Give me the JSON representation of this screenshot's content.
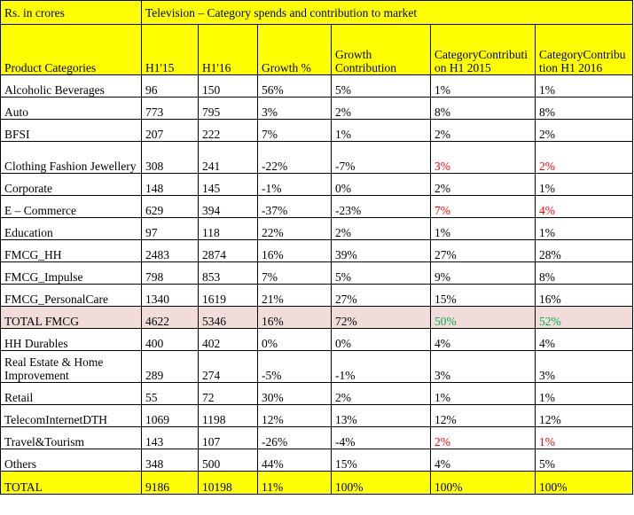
{
  "header": {
    "unit_label": "Rs. in crores",
    "title": "Television  – Category spends and contribution to market",
    "columns": [
      "Product Categories",
      "H1'15",
      "H1'16",
      "Growth %",
      "Growth Contribution",
      "CategoryContribution H1 2015",
      "CategoryContribution H1 2016"
    ]
  },
  "rows": [
    {
      "category": "Alcoholic Beverages",
      "h115": "96",
      "h116": "150",
      "growth": "56%",
      "growth_contribution": "5%",
      "contrib_2015": "1%",
      "contrib_2016": "1%",
      "highlight": ""
    },
    {
      "category": "Auto",
      "h115": "773",
      "h116": "795",
      "growth": "3%",
      "growth_contribution": "2%",
      "contrib_2015": "8%",
      "contrib_2016": "8%",
      "highlight": ""
    },
    {
      "category": "BFSI",
      "h115": "207",
      "h116": "222",
      "growth": "7%",
      "growth_contribution": "1%",
      "contrib_2015": "2%",
      "contrib_2016": "2%",
      "highlight": ""
    },
    {
      "category": "Clothing Fashion Jewellery",
      "h115": "308",
      "h116": "241",
      "growth": "-22%",
      "growth_contribution": "-7%",
      "contrib_2015": "3%",
      "contrib_2016": "2%",
      "highlight": "red"
    },
    {
      "category": "Corporate",
      "h115": "148",
      "h116": "145",
      "growth": "-1%",
      "growth_contribution": "0%",
      "contrib_2015": "2%",
      "contrib_2016": "1%",
      "highlight": ""
    },
    {
      "category": "E – Commerce",
      "h115": "629",
      "h116": "394",
      "growth": "-37%",
      "growth_contribution": "-23%",
      "contrib_2015": "7%",
      "contrib_2016": "4%",
      "highlight": "red"
    },
    {
      "category": "Education",
      "h115": "97",
      "h116": "118",
      "growth": "22%",
      "growth_contribution": "2%",
      "contrib_2015": "1%",
      "contrib_2016": "1%",
      "highlight": ""
    },
    {
      "category": "FMCG_HH",
      "h115": "2483",
      "h116": "2874",
      "growth": "16%",
      "growth_contribution": "39%",
      "contrib_2015": "27%",
      "contrib_2016": "28%",
      "highlight": ""
    },
    {
      "category": "FMCG_Impulse",
      "h115": "798",
      "h116": "853",
      "growth": "7%",
      "growth_contribution": "5%",
      "contrib_2015": "9%",
      "contrib_2016": "8%",
      "highlight": ""
    },
    {
      "category": "FMCG_PersonalCare",
      "h115": "1340",
      "h116": "1619",
      "growth": "21%",
      "growth_contribution": "27%",
      "contrib_2015": "15%",
      "contrib_2016": "16%",
      "highlight": ""
    },
    {
      "category": "TOTAL FMCG",
      "h115": "4622",
      "h116": "5346",
      "growth": "16%",
      "growth_contribution": "72%",
      "contrib_2015": "50%",
      "contrib_2016": "52%",
      "highlight": "green"
    },
    {
      "category": "HH Durables",
      "h115": "400",
      "h116": "402",
      "growth": "0%",
      "growth_contribution": "0%",
      "contrib_2015": "4%",
      "contrib_2016": "4%",
      "highlight": ""
    },
    {
      "category": "Real Estate & Home Improvement",
      "h115": "289",
      "h116": "274",
      "growth": "-5%",
      "growth_contribution": "-1%",
      "contrib_2015": "3%",
      "contrib_2016": "3%",
      "highlight": ""
    },
    {
      "category": "Retail",
      "h115": "55",
      "h116": "72",
      "growth": "30%",
      "growth_contribution": "2%",
      "contrib_2015": "1%",
      "contrib_2016": "1%",
      "highlight": ""
    },
    {
      "category": "TelecomInternetDTH",
      "h115": "1069",
      "h116": "1198",
      "growth": "12%",
      "growth_contribution": "13%",
      "contrib_2015": "12%",
      "contrib_2016": "12%",
      "highlight": ""
    },
    {
      "category": "Travel&Tourism",
      "h115": "143",
      "h116": "107",
      "growth": "-26%",
      "growth_contribution": "-4%",
      "contrib_2015": "2%",
      "contrib_2016": "1%",
      "highlight": "red"
    },
    {
      "category": "Others",
      "h115": "348",
      "h116": "500",
      "growth": "44%",
      "growth_contribution": "15%",
      "contrib_2015": "4%",
      "contrib_2016": "5%",
      "highlight": ""
    }
  ],
  "total": {
    "category": "TOTAL",
    "h115": "9186",
    "h116": "10198",
    "growth": "11%",
    "growth_contribution": "100%",
    "contrib_2015": "100%",
    "contrib_2016": "100%"
  },
  "colors": {
    "header_fill": "#ffff00",
    "fmcg_fill": "#f2dcdb",
    "negative_share": "#ff0000",
    "fmcg_share": "#00b050"
  }
}
